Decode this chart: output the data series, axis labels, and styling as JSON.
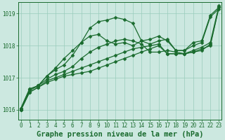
{
  "title": "Graphe pression niveau de la mer (hPa)",
  "xlabel_hours": [
    0,
    1,
    2,
    3,
    4,
    5,
    6,
    7,
    8,
    9,
    10,
    11,
    12,
    13,
    14,
    15,
    16,
    17,
    18,
    19,
    20,
    21,
    22,
    23
  ],
  "ylim": [
    1015.7,
    1019.35
  ],
  "yticks": [
    1016,
    1017,
    1018,
    1019
  ],
  "background_color": "#cce8e0",
  "grid_color": "#99ccbb",
  "line_color": "#1a6b2e",
  "series": [
    [
      1016.0,
      1016.55,
      1016.7,
      1016.85,
      1016.95,
      1017.05,
      1017.1,
      1017.15,
      1017.2,
      1017.3,
      1017.4,
      1017.5,
      1017.6,
      1017.7,
      1017.8,
      1017.9,
      1018.0,
      1017.75,
      1017.75,
      1017.75,
      1017.8,
      1017.85,
      1018.05,
      1019.2
    ],
    [
      1016.0,
      1016.55,
      1016.7,
      1016.9,
      1017.0,
      1017.1,
      1017.2,
      1017.3,
      1017.4,
      1017.5,
      1017.6,
      1017.7,
      1017.8,
      1017.9,
      1017.95,
      1018.0,
      1018.05,
      1017.75,
      1017.75,
      1017.75,
      1017.85,
      1017.95,
      1018.1,
      1019.25
    ],
    [
      1016.0,
      1016.6,
      1016.75,
      1016.95,
      1017.1,
      1017.2,
      1017.35,
      1017.6,
      1017.8,
      1017.95,
      1018.05,
      1018.15,
      1018.2,
      1018.15,
      1018.05,
      1017.8,
      1017.8,
      1017.85,
      1017.8,
      1017.75,
      1017.8,
      1017.9,
      1018.0,
      1019.2
    ],
    [
      1016.05,
      1016.65,
      1016.75,
      1017.05,
      1017.25,
      1017.4,
      1017.7,
      1018.1,
      1018.3,
      1018.35,
      1018.15,
      1018.05,
      1018.1,
      1018.0,
      1018.15,
      1018.2,
      1018.3,
      1018.15,
      1017.85,
      1017.85,
      1018.1,
      1018.15,
      1018.95,
      1019.2
    ],
    [
      1016.05,
      1016.65,
      1016.75,
      1017.05,
      1017.3,
      1017.6,
      1017.85,
      1018.1,
      1018.55,
      1018.75,
      1018.8,
      1018.88,
      1018.82,
      1018.7,
      1018.15,
      1018.05,
      1018.15,
      1018.2,
      1017.85,
      1017.85,
      1018.0,
      1018.1,
      1018.9,
      1019.15
    ]
  ],
  "marker": "D",
  "markersize": 2.5,
  "linewidth": 0.9,
  "title_fontsize": 7.5,
  "tick_fontsize": 5.5
}
